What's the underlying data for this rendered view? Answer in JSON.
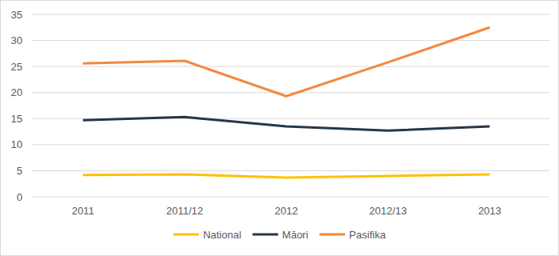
{
  "chart_data": {
    "type": "line",
    "categories": [
      "2011",
      "2011/12",
      "2012",
      "2012/13",
      "2013"
    ],
    "series": [
      {
        "name": "National",
        "color": "#ffc000",
        "values": [
          4.2,
          4.3,
          3.7,
          4.0,
          4.3
        ]
      },
      {
        "name": "Māori",
        "color": "#263746",
        "values": [
          14.7,
          15.3,
          13.5,
          12.7,
          13.5
        ]
      },
      {
        "name": "Pasifika",
        "color": "#f4883c",
        "values": [
          25.6,
          26.1,
          19.3,
          25.8,
          32.5
        ]
      }
    ],
    "ylim": [
      0,
      35
    ],
    "yticks": [
      0,
      5,
      10,
      15,
      20,
      25,
      30,
      35
    ],
    "grid": true,
    "legend": "bottom"
  }
}
